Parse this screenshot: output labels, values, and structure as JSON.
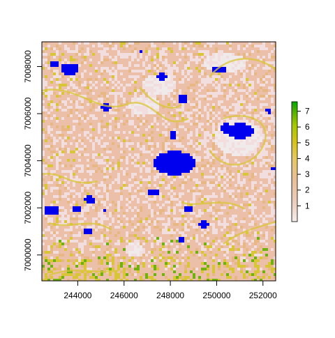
{
  "map": {
    "x_ticks": [
      "244000",
      "246000",
      "248000",
      "250000",
      "252000"
    ],
    "y_ticks": [
      "7000000",
      "7002000",
      "7004000",
      "7006000",
      "7008000"
    ],
    "x_tick_values": [
      244000,
      246000,
      248000,
      250000,
      252000
    ],
    "y_tick_values": [
      7000000,
      7002000,
      7004000,
      7006000,
      7008000
    ],
    "xlim": [
      242450,
      252550
    ],
    "ylim": [
      6998900,
      7009050
    ],
    "raster_colors": {
      "base": "#ecc0a8",
      "light": "#f2dede",
      "pale": "#f1eaea",
      "tan": "#e8b884",
      "yellow": "#d9c637",
      "green": "#6fb10f",
      "water": "#0000ee"
    },
    "water_label_icon": "none"
  },
  "legend": {
    "ticks": [
      "1",
      "2",
      "3",
      "4",
      "5",
      "6",
      "7"
    ],
    "tick_values": [
      1,
      2,
      3,
      4,
      5,
      6,
      7
    ],
    "range": [
      0,
      7.6
    ],
    "colors": [
      "#f2f2f2",
      "#eccfc0",
      "#e8bf98",
      "#e6c867",
      "#d6c31c",
      "#a8c800",
      "#52b000",
      "#00a600"
    ]
  }
}
